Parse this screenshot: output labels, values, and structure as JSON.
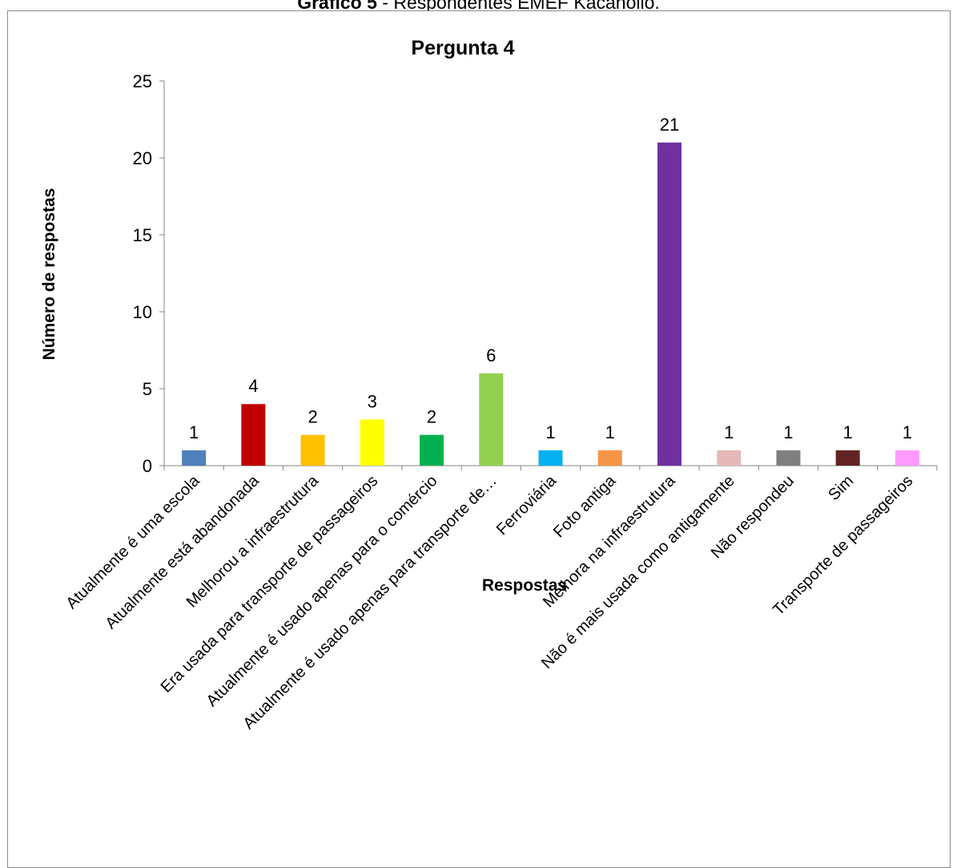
{
  "figure_caption": {
    "label": "Gráfico 5",
    "text": " - Respondentes EMEF Kacahollo."
  },
  "chart_data": {
    "type": "bar",
    "title": "Pergunta 4",
    "xlabel": "Respostas",
    "ylabel": "Número de respostas",
    "ylim": [
      0,
      25
    ],
    "yticks": [
      0,
      5,
      10,
      15,
      20,
      25
    ],
    "grid": false,
    "legend": "none",
    "categories": [
      "Atualmente é uma escola",
      "Atualmente está abandonada",
      "Melhorou a infraestrutura",
      "Era usada para transporte de passageiros",
      "Atualmente é usado apenas para o comércio",
      "Atualmente é usado apenas para transporte de…",
      "Ferroviária",
      "Foto antiga",
      "Melhora na infraestrutura",
      "Não é mais usada como antigamente",
      "Não respondeu",
      "Sim",
      "Transporte de passageiros"
    ],
    "values": [
      1,
      4,
      2,
      3,
      2,
      6,
      1,
      1,
      21,
      1,
      1,
      1,
      1
    ],
    "colors": [
      "#4f81bd",
      "#c00000",
      "#ffc000",
      "#ffff00",
      "#00b050",
      "#92d050",
      "#00b0f0",
      "#f79646",
      "#7030a0",
      "#e6b9b8",
      "#7f7f7f",
      "#632523",
      "#ff99ff"
    ]
  }
}
